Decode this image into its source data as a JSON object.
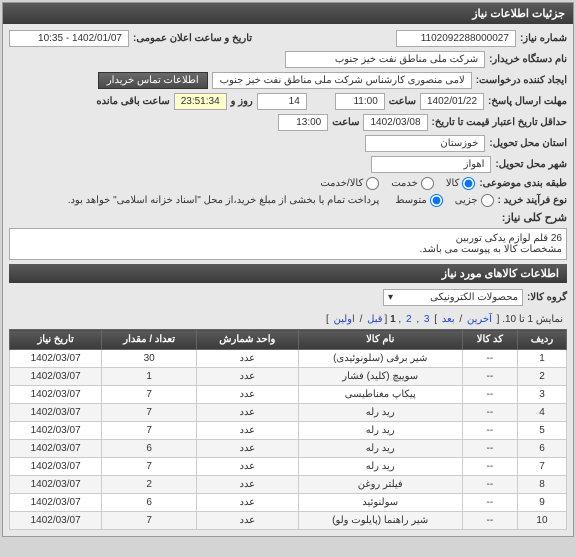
{
  "headers": {
    "main": "جزئیات اطلاعات نیاز",
    "goods": "اطلاعات کالاهای مورد نیاز"
  },
  "labels": {
    "need_no": "شماره نیاز:",
    "announce_dt": "تاریخ و ساعت اعلان عمومی:",
    "buyer_org": "نام دستگاه خریدار:",
    "requester": "ایجاد کننده درخواست:",
    "contact_btn": "اطلاعات تماس خریدار",
    "reply_deadline": "مهلت ارسال پاسخ:",
    "hour": "ساعت",
    "day_and": "روز و",
    "remaining": "ساعت باقی مانده",
    "valid_deadline": "حداقل تاریخ اعتبار قیمت تا تاریخ:",
    "exec_province": "استان محل تحویل:",
    "exec_city": "شهر محل تحویل:",
    "subject_cat": "طبقه بندی موضوعی:",
    "buy_process": "نوع فرآیند خرید :",
    "note_pay": "پرداخت تمام یا بخشی از مبلغ خرید،از محل \"اسناد خزانه اسلامی\" خواهد بود.",
    "need_desc": "شرح کلی نیاز:",
    "goods_group": "گروه کالا:",
    "pager_prefix": "نمایش 1 تا 10. [ ",
    "pager_last": "آخرین",
    "pager_next": "بعد",
    "pager_p3": "3",
    "pager_p2": "2",
    "pager_p1": "1",
    "pager_prev": "قبل",
    "pager_first": "اولین",
    "pager_suffix": " ]"
  },
  "values": {
    "need_no": "1102092288000027",
    "announce_dt": "1402/01/07 - 10:35",
    "buyer_org": "شرکت ملی مناطق نفت خیز جنوب",
    "requester": "لامی منصوری کارشناس شرکت ملی مناطق نفت خیز جنوب",
    "reply_date": "1402/01/22",
    "reply_hour": "11:00",
    "days_left": "14",
    "time_left": "23:51:34",
    "valid_date": "1402/03/08",
    "valid_hour": "13:00",
    "province": "خوزستان",
    "city": "اهواز",
    "desc": "26 قلم لوازم یدکی توربین\nمشخصات کالا به پیوست می باشد.",
    "goods_group": "محصولات الکترونیکی"
  },
  "radios": {
    "cat": [
      {
        "label": "کالا",
        "checked": true
      },
      {
        "label": "خدمت",
        "checked": false
      },
      {
        "label": "کالا/خدمت",
        "checked": false
      }
    ],
    "process": [
      {
        "label": "جزیی",
        "checked": false
      },
      {
        "label": "متوسط",
        "checked": true
      }
    ]
  },
  "table": {
    "cols": [
      "ردیف",
      "کد کالا",
      "نام کالا",
      "واحد شمارش",
      "تعداد / مقدار",
      "تاریخ نیاز"
    ],
    "rows": [
      [
        "1",
        "--",
        "شیر برقی (سلونوئیدی)",
        "عدد",
        "30",
        "1402/03/07"
      ],
      [
        "2",
        "--",
        "سوییچ (کلید) فشار",
        "عدد",
        "1",
        "1402/03/07"
      ],
      [
        "3",
        "--",
        "پیکاپ مغناطیسی",
        "عدد",
        "7",
        "1402/03/07"
      ],
      [
        "4",
        "--",
        "رید رله",
        "عدد",
        "7",
        "1402/03/07"
      ],
      [
        "5",
        "--",
        "رید رله",
        "عدد",
        "7",
        "1402/03/07"
      ],
      [
        "6",
        "--",
        "رید رله",
        "عدد",
        "6",
        "1402/03/07"
      ],
      [
        "7",
        "--",
        "رید رله",
        "عدد",
        "7",
        "1402/03/07"
      ],
      [
        "8",
        "--",
        "فیلتر روغن",
        "عدد",
        "2",
        "1402/03/07"
      ],
      [
        "9",
        "--",
        "سولنوئید",
        "عدد",
        "6",
        "1402/03/07"
      ],
      [
        "10",
        "--",
        "شیر راهنما (پایلوت ولو)",
        "عدد",
        "7",
        "1402/03/07"
      ]
    ]
  }
}
